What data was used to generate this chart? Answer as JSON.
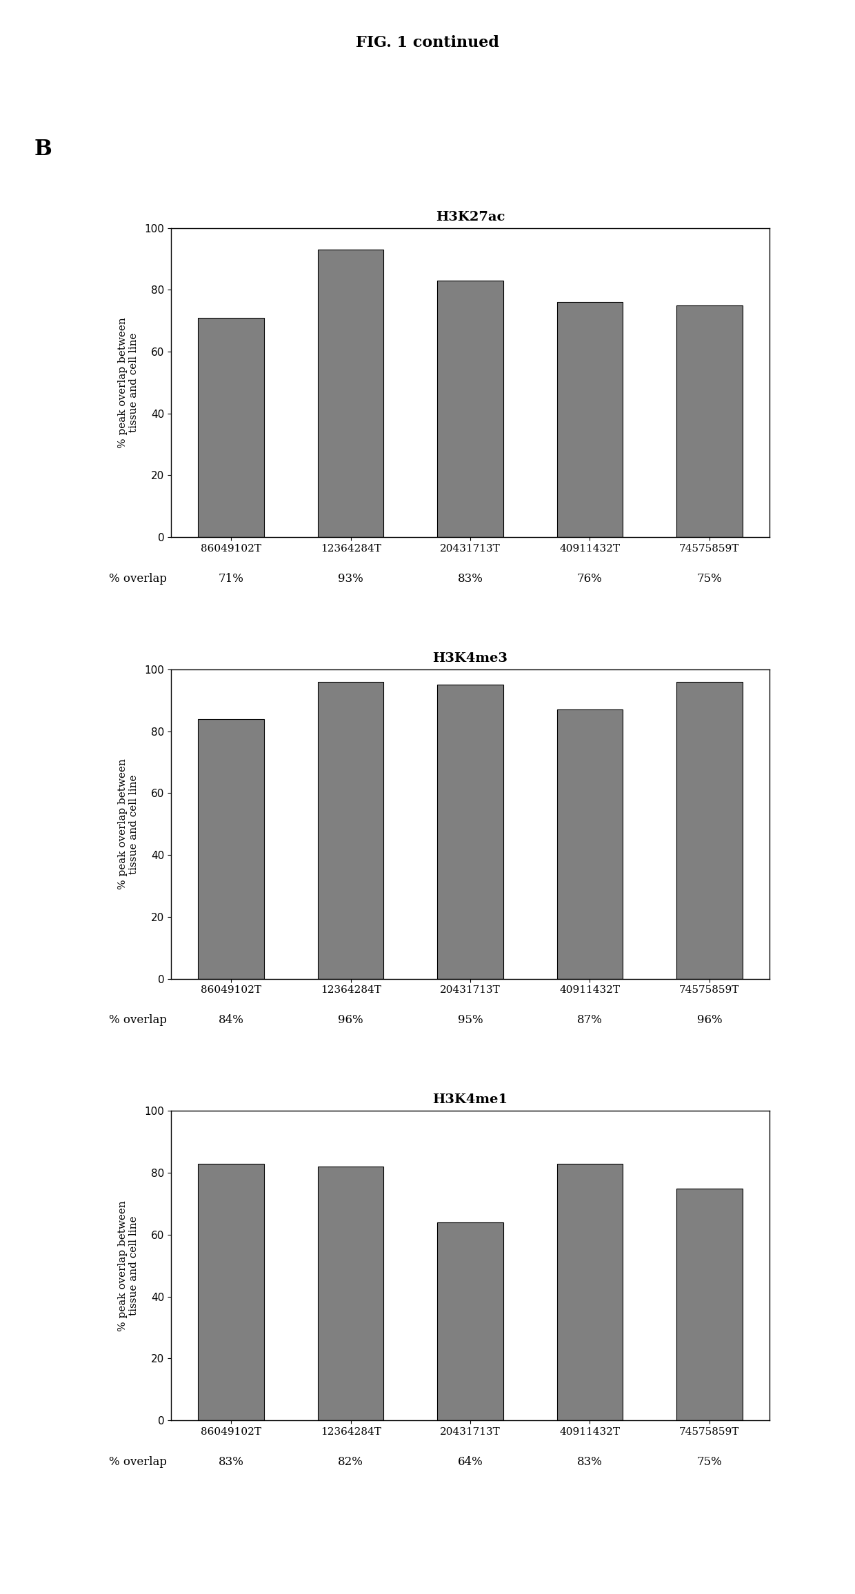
{
  "title": "FIG. 1 continued",
  "panel_label": "B",
  "bar_color": "#808080",
  "categories": [
    "86049102T",
    "12364284T",
    "20431713T",
    "40911432T",
    "74575859T"
  ],
  "charts": [
    {
      "title": "H3K27ac",
      "values": [
        71,
        93,
        83,
        76,
        75
      ],
      "overlap_labels": [
        "71%",
        "93%",
        "83%",
        "76%",
        "75%"
      ]
    },
    {
      "title": "H3K4me3",
      "values": [
        84,
        96,
        95,
        87,
        96
      ],
      "overlap_labels": [
        "84%",
        "96%",
        "95%",
        "87%",
        "96%"
      ]
    },
    {
      "title": "H3K4me1",
      "values": [
        83,
        82,
        64,
        83,
        75
      ],
      "overlap_labels": [
        "83%",
        "82%",
        "64%",
        "83%",
        "75%"
      ]
    }
  ],
  "ylabel": "% peak overlap between\ntissue and cell line",
  "ylim": [
    0,
    100
  ],
  "yticks": [
    0,
    20,
    40,
    60,
    80,
    100
  ],
  "overlap_label_prefix": "% overlap",
  "background_color": "#ffffff",
  "figsize": [
    12.4,
    23.12
  ],
  "dpi": 100,
  "title_fontsize": 16,
  "panel_fontsize": 22,
  "chart_title_fontsize": 14,
  "axis_label_fontsize": 11,
  "tick_fontsize": 11,
  "overlap_fontsize": 12
}
